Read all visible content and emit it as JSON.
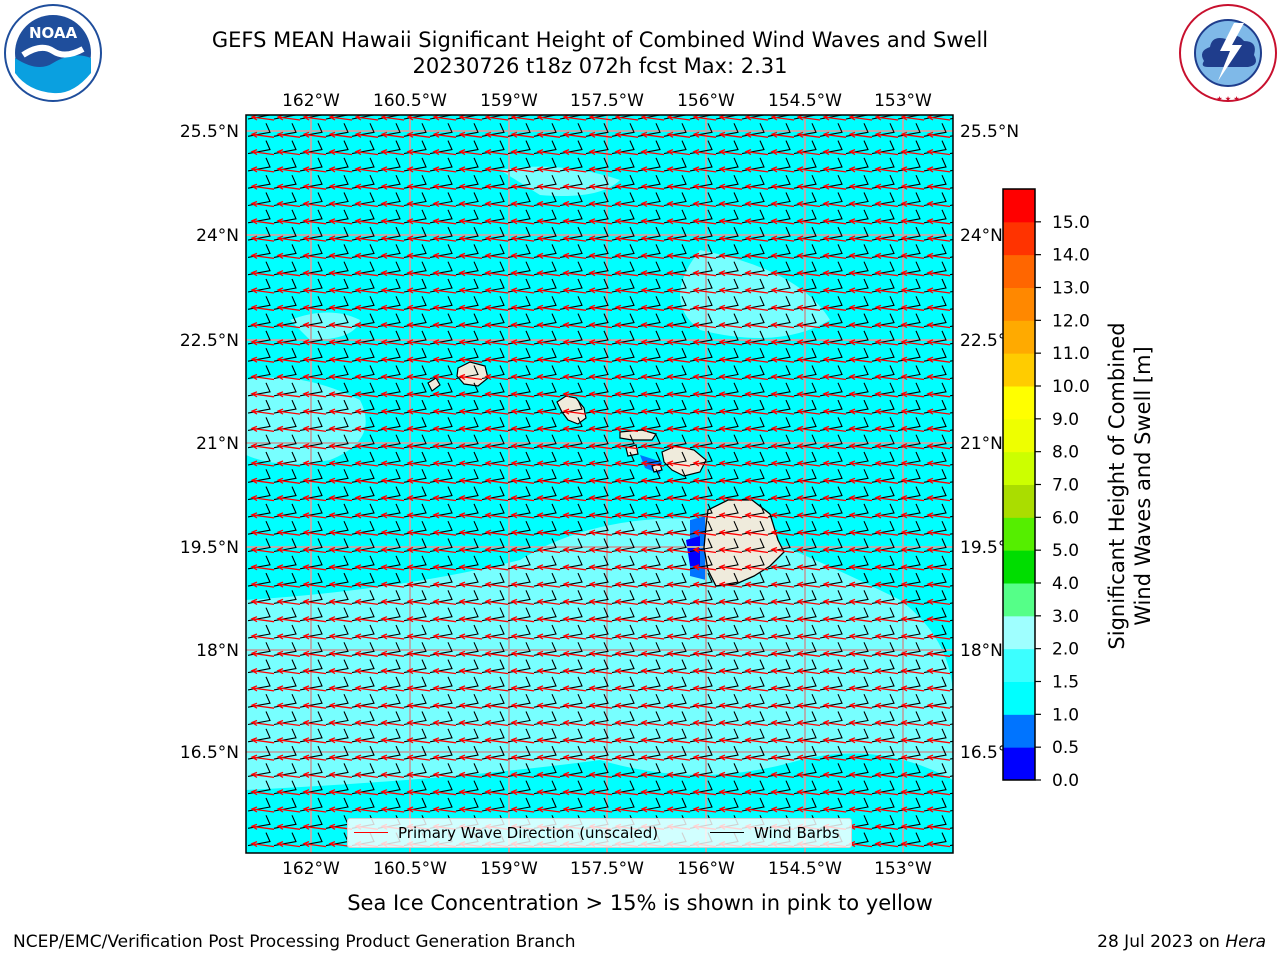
{
  "title_line1": "GEFS MEAN Hawaii Significant Height of Combined Wind Waves and Swell",
  "title_line2": "20230726 t18z 072h fcst   Max: 2.31",
  "map": {
    "lon_labels": [
      "162°W",
      "160.5°W",
      "159°W",
      "157.5°W",
      "156°W",
      "154.5°W",
      "153°W"
    ],
    "lat_labels": [
      "25.5°N",
      "24°N",
      "22.5°N",
      "21°N",
      "19.5°N",
      "18°N",
      "16.5°N"
    ],
    "lon_range": [
      -163.0,
      -152.2
    ],
    "lat_range": [
      15.3,
      25.9
    ],
    "background_color": "#00ffff",
    "swell_color": "#9fffff"
  },
  "legend": {
    "wave_direction_label": "Primary Wave Direction (unscaled)",
    "wind_barbs_label": "Wind Barbs",
    "wave_direction_color": "#ff0000",
    "wind_barbs_color": "#000000"
  },
  "colorbar": {
    "title_line1": "Significant Height of Combined",
    "title_line2": "Wind Waves and Swell [m]",
    "tick_labels": [
      "0.0",
      "0.5",
      "1.0",
      "1.5",
      "2.0",
      "3.0",
      "4.0",
      "5.0",
      "6.0",
      "7.0",
      "8.0",
      "9.0",
      "10.0",
      "11.0",
      "12.0",
      "13.0",
      "14.0",
      "15.0"
    ],
    "colors": [
      "#0000ff",
      "#0074ff",
      "#00ffff",
      "#3cffff",
      "#9fffff",
      "#55ff88",
      "#00dd00",
      "#55ee00",
      "#aadd00",
      "#ccff00",
      "#eeff00",
      "#ffff00",
      "#ffcc00",
      "#ffaa00",
      "#ff8800",
      "#ff6600",
      "#ff3300",
      "#ff0000"
    ]
  },
  "ice_note": "Sea Ice Concentration > 15% is shown in pink to yellow",
  "credit": "NCEP/EMC/Verification Post Processing Product Generation Branch",
  "date_prefix": "28 Jul 2023 on ",
  "date_machine": "Hera",
  "logos": {
    "noaa_text": "NOAA",
    "nws_text": "NATIONAL WEATHER SERVICE"
  }
}
